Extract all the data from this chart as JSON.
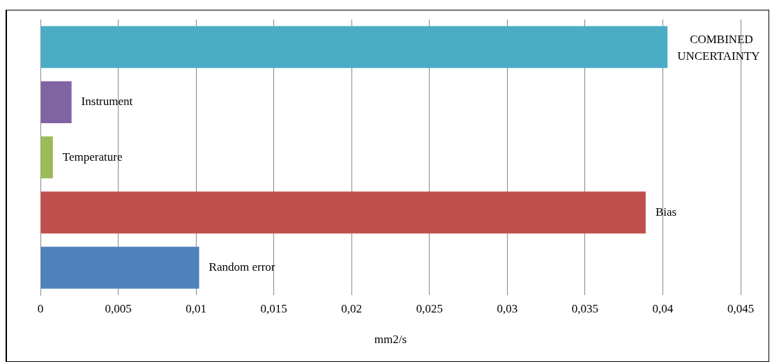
{
  "chart_data": {
    "type": "bar",
    "orientation": "horizontal",
    "xlabel": "mm2/s",
    "categories": [
      "COMBINED UNCERTAINTY",
      "Instrument",
      "Temperature",
      "Bias",
      "Random error"
    ],
    "values": [
      0.0403,
      0.002,
      0.0008,
      0.0389,
      0.0102
    ],
    "colors": [
      "#4bacc6",
      "#8064a2",
      "#9bbb59",
      "#c0504d",
      "#4f81bd"
    ],
    "xlim": [
      0,
      0.045
    ],
    "xticks": [
      0,
      {
        "value": 0.005,
        "label": "0,005"
      },
      {
        "value": 0.01,
        "label": "0,01"
      },
      {
        "value": 0.015,
        "label": "0,015"
      },
      {
        "value": 0.02,
        "label": "0,02"
      },
      {
        "value": 0.025,
        "label": "0,025"
      },
      {
        "value": 0.03,
        "label": "0,03"
      },
      {
        "value": 0.035,
        "label": "0,035"
      },
      {
        "value": 0.04,
        "label": "0,04"
      },
      {
        "value": 0.045,
        "label": "0,045"
      }
    ],
    "grid": "x"
  }
}
